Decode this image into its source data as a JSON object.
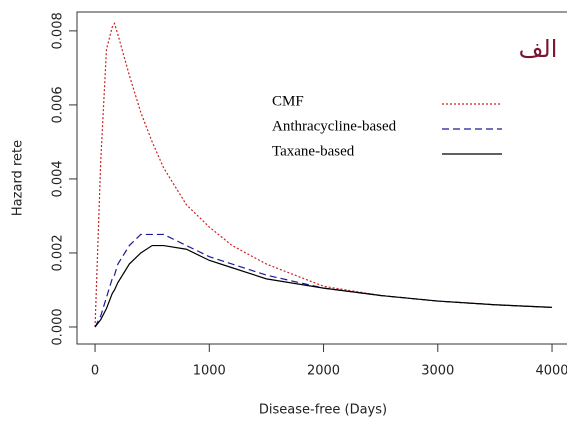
{
  "chart_data": {
    "type": "line",
    "annotation": "الف",
    "xlabel": "Disease-free (Days)",
    "ylabel": "Hazard rete",
    "x": [
      0,
      50,
      100,
      150,
      170,
      200,
      300,
      400,
      500,
      600,
      800,
      1000,
      1200,
      1500,
      2000,
      2500,
      3000,
      3500,
      4000
    ],
    "series": [
      {
        "name": "CMF",
        "color": "#cc2222",
        "dash": "2,2",
        "values": [
          0,
          0.0045,
          0.0075,
          0.0081,
          0.0082,
          0.0079,
          0.0068,
          0.0058,
          0.005,
          0.0043,
          0.0033,
          0.0027,
          0.0022,
          0.0017,
          0.0011,
          0.00085,
          0.0007,
          0.0006,
          0.00053
        ]
      },
      {
        "name": "Anthracycline-based",
        "color": "#1a1a99",
        "dash": "7,4",
        "values": [
          0,
          0.0003,
          0.0008,
          0.0013,
          0.0014,
          0.0017,
          0.0022,
          0.0025,
          0.0025,
          0.0025,
          0.0022,
          0.0019,
          0.0017,
          0.0014,
          0.00105,
          0.00085,
          0.0007,
          0.0006,
          0.00053
        ]
      },
      {
        "name": "Taxane-based",
        "color": "#000000",
        "dash": "none",
        "values": [
          0,
          0.0002,
          0.0005,
          0.0009,
          0.001,
          0.0012,
          0.0017,
          0.002,
          0.0022,
          0.0022,
          0.0021,
          0.0018,
          0.0016,
          0.0013,
          0.00105,
          0.00085,
          0.0007,
          0.0006,
          0.00053
        ]
      }
    ],
    "xlim": [
      -158,
      4131
    ],
    "ylim": [
      -0.00046,
      0.00851
    ],
    "xticks": [
      0,
      1000,
      2000,
      3000,
      4000
    ],
    "yticks": [
      {
        "value": 0,
        "label": "0.000"
      },
      {
        "value": 0.002,
        "label": "0.002"
      },
      {
        "value": 0.004,
        "label": "0.004"
      },
      {
        "value": 0.006,
        "label": "0.006"
      },
      {
        "value": 0.008,
        "label": "0.008"
      }
    ]
  }
}
